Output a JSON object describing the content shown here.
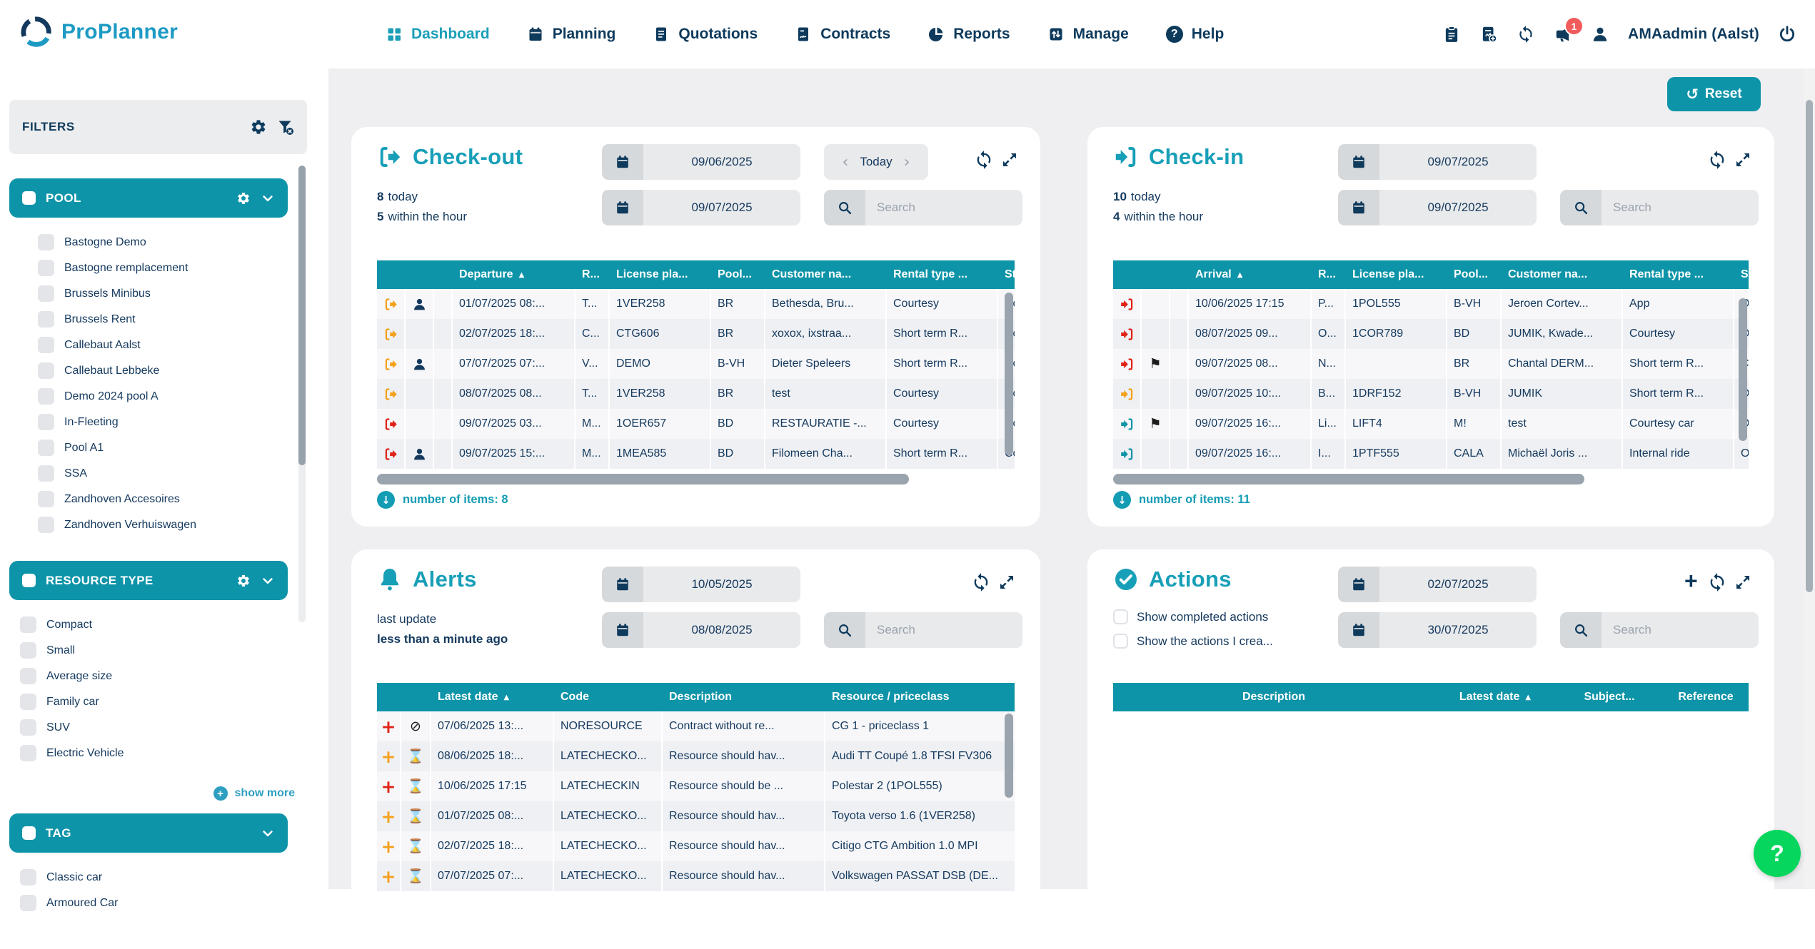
{
  "topbar": {
    "logo_text": "ProPlanner",
    "nav": [
      {
        "label": "Dashboard",
        "icon": "grid",
        "active": true
      },
      {
        "label": "Planning",
        "icon": "calendar",
        "active": false
      },
      {
        "label": "Quotations",
        "icon": "doc",
        "active": false
      },
      {
        "label": "Contracts",
        "icon": "docsign",
        "active": false
      },
      {
        "label": "Reports",
        "icon": "pie",
        "active": false
      },
      {
        "label": "Manage",
        "icon": "manage",
        "active": false
      },
      {
        "label": "Help",
        "icon": "help",
        "active": false
      }
    ],
    "notification_count": "1",
    "user_name": "AMAadmin (Aalst)"
  },
  "sidebar": {
    "title": "FILTERS",
    "sections": [
      {
        "label": "POOL",
        "gear": true,
        "indent": true,
        "items": [
          "Bastogne Demo",
          "Bastogne remplacement",
          "Brussels Minibus",
          "Brussels Rent",
          "Callebaut Aalst",
          "Callebaut Lebbeke",
          "Demo 2024 pool A",
          "In-Fleeting",
          "Pool A1",
          "SSA",
          "Zandhoven Accesoires",
          "Zandhoven Verhuiswagen"
        ]
      },
      {
        "label": "RESOURCE TYPE",
        "gear": true,
        "indent": false,
        "items": [
          "Compact",
          "Small",
          "Average size",
          "Family car",
          "SUV",
          "Electric Vehicle"
        ],
        "show_more": "show more"
      },
      {
        "label": "TAG",
        "gear": false,
        "indent": false,
        "items": [
          "Classic car",
          "Armoured Car"
        ]
      }
    ]
  },
  "main": {
    "reset_label": "Reset",
    "help_label": "?"
  },
  "panels": {
    "checkout": {
      "title": "Check-out",
      "count_today": "8",
      "count_today_label": "today",
      "count_hour": "5",
      "count_hour_label": "within the hour",
      "date_from": "09/06/2025",
      "date_to": "09/07/2025",
      "today_label": "Today",
      "search_placeholder": "Search",
      "footer": "number of items: 8",
      "table": {
        "columns": [
          {
            "label": ""
          },
          {
            "label": ""
          },
          {
            "label": ""
          },
          {
            "label": "Departure",
            "sort": true
          },
          {
            "label": "R..."
          },
          {
            "label": "License pla..."
          },
          {
            "label": "Pool..."
          },
          {
            "label": "Customer na..."
          },
          {
            "label": "Rental type ..."
          },
          {
            "label": "Sta"
          }
        ],
        "rows": [
          {
            "icons": [
              "co:orange",
              "person:navy"
            ],
            "cells": [
              "01/07/2025 08:...",
              "T...",
              "1VER258",
              "BR",
              "Bethesda, Bru...",
              "Courtesy",
              "Co"
            ]
          },
          {
            "icons": [
              "co:orange"
            ],
            "cells": [
              "02/07/2025 18:...",
              "C...",
              "CTG606",
              "BR",
              "xoxox, ixstraa...",
              "Short term R...",
              "Co"
            ]
          },
          {
            "icons": [
              "co:orange",
              "person:navy"
            ],
            "cells": [
              "07/07/2025 07:...",
              "V...",
              "DEMO",
              "B-VH",
              "Dieter Speleers",
              "Short term R...",
              "Co"
            ]
          },
          {
            "icons": [
              "co:orange"
            ],
            "cells": [
              "08/07/2025 08...",
              "T...",
              "1VER258",
              "BR",
              "test",
              "Courtesy",
              "Co"
            ]
          },
          {
            "icons": [
              "co:red"
            ],
            "cells": [
              "09/07/2025 03...",
              "M...",
              "1OER657",
              "BD",
              "RESTAURATIE -...",
              "Courtesy",
              "Co"
            ]
          },
          {
            "icons": [
              "co:red",
              "person:navy"
            ],
            "cells": [
              "09/07/2025 15:...",
              "M...",
              "1MEA585",
              "BD",
              "Filomeen Cha...",
              "Short term R...",
              "Co"
            ]
          }
        ]
      }
    },
    "checkin": {
      "title": "Check-in",
      "count_today": "10",
      "count_today_label": "today",
      "count_hour": "4",
      "count_hour_label": "within the hour",
      "date_from": "09/07/2025",
      "date_to": "09/07/2025",
      "search_placeholder": "Search",
      "footer": "number of items: 11",
      "table": {
        "columns": [
          {
            "label": ""
          },
          {
            "label": ""
          },
          {
            "label": ""
          },
          {
            "label": "Arrival",
            "sort": true
          },
          {
            "label": "R..."
          },
          {
            "label": "License pla..."
          },
          {
            "label": "Pool..."
          },
          {
            "label": "Customer na..."
          },
          {
            "label": "Rental type ..."
          },
          {
            "label": "Sta"
          }
        ],
        "rows": [
          {
            "icons": [
              "ci:red"
            ],
            "cells": [
              "10/06/2025 17:15",
              "P...",
              "1POL555",
              "B-VH",
              "Jeroen Cortev...",
              "App",
              "Op"
            ]
          },
          {
            "icons": [
              "ci:red"
            ],
            "cells": [
              "08/07/2025 09...",
              "O...",
              "1COR789",
              "BD",
              "JUMIK, Kwade...",
              "Courtesy",
              "Op"
            ]
          },
          {
            "icons": [
              "ci:red",
              "flag:black"
            ],
            "cells": [
              "09/07/2025 08...",
              "N...",
              "",
              "BR",
              "Chantal DERM...",
              "Short term R...",
              "Ch"
            ]
          },
          {
            "icons": [
              "ci:orange"
            ],
            "cells": [
              "09/07/2025 10:...",
              "B...",
              "1DRF152",
              "B-VH",
              "JUMIK",
              "Short term R...",
              "Op"
            ]
          },
          {
            "icons": [
              "ci:teal",
              "flag:black"
            ],
            "cells": [
              "09/07/2025 16:...",
              "Li...",
              "LIFT4",
              "M!",
              "test",
              "Courtesy car",
              "Op"
            ]
          },
          {
            "icons": [
              "ci:teal"
            ],
            "cells": [
              "09/07/2025 16:...",
              "I...",
              "1PTF555",
              "CALA",
              "Michaël Joris ...",
              "Internal ride",
              "Op"
            ]
          }
        ]
      }
    },
    "alerts": {
      "title": "Alerts",
      "last_update_label": "last update",
      "last_update_value": "less than a minute ago",
      "date_from": "10/05/2025",
      "date_to": "08/08/2025",
      "search_placeholder": "Search",
      "table": {
        "columns": [
          {
            "label": ""
          },
          {
            "label": ""
          },
          {
            "label": "Latest date",
            "sort": true
          },
          {
            "label": "Code"
          },
          {
            "label": "Description"
          },
          {
            "label": "Resource / priceclass"
          }
        ],
        "rows": [
          {
            "icons": [
              "plus:red",
              "ban:black"
            ],
            "cells": [
              "07/06/2025 13:...",
              "NORESOURCE",
              "Contract without re...",
              "CG 1 - priceclass 1"
            ]
          },
          {
            "icons": [
              "plus:orange",
              "hg:black"
            ],
            "cells": [
              "08/06/2025 18:...",
              "LATECHECKO...",
              "Resource should hav...",
              "Audi TT Coupé 1.8 TFSI FV306"
            ]
          },
          {
            "icons": [
              "plus:red",
              "hg:black"
            ],
            "cells": [
              "10/06/2025 17:15",
              "LATECHECKIN",
              "Resource should be ...",
              "Polestar 2 (1POL555)"
            ]
          },
          {
            "icons": [
              "plus:orange",
              "hg:black"
            ],
            "cells": [
              "01/07/2025 08:...",
              "LATECHECKO...",
              "Resource should hav...",
              "Toyota verso 1.6 (1VER258)"
            ]
          },
          {
            "icons": [
              "plus:orange",
              "hg:black"
            ],
            "cells": [
              "02/07/2025 18:...",
              "LATECHECKO...",
              "Resource should hav...",
              "Citigo CTG Ambition 1.0 MPI"
            ]
          },
          {
            "icons": [
              "plus:orange",
              "hg:black"
            ],
            "cells": [
              "07/07/2025 07:...",
              "LATECHECKO...",
              "Resource should hav...",
              "Volkswagen PASSAT DSB (DE..."
            ]
          }
        ]
      }
    },
    "actions": {
      "title": "Actions",
      "checkbox_completed": "Show completed actions",
      "checkbox_created": "Show the actions I crea...",
      "date_from": "02/07/2025",
      "date_to": "30/07/2025",
      "search_placeholder": "Search",
      "table": {
        "columns": [
          {
            "label": "Description"
          },
          {
            "label": "Latest date",
            "sort": true
          },
          {
            "label": "Subject..."
          },
          {
            "label": "Reference"
          }
        ],
        "rows": []
      }
    }
  }
}
